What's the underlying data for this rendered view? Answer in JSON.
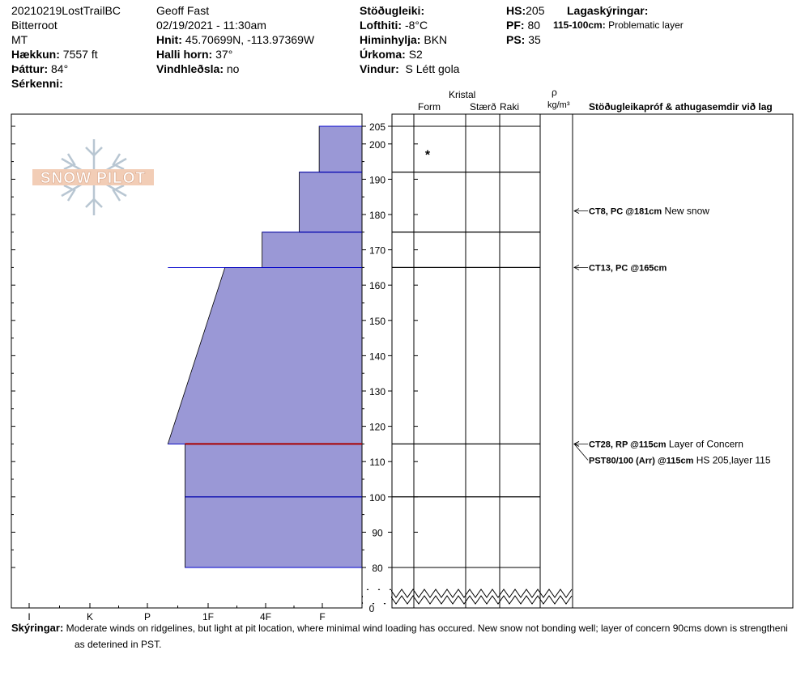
{
  "header": {
    "col1": {
      "pit_name": "20210219LostTrailBC",
      "range": "Bitterroot",
      "state": "MT",
      "elevation_label": "Hækkun:",
      "elevation": "7557 ft",
      "aspect_label": "Þáttur:",
      "aspect": "84°",
      "features_label": "Sérkenni:"
    },
    "col2": {
      "observer": "Geoff Fast",
      "datetime": "02/19/2021 - 11:30am",
      "coords_label": "Hnit:",
      "coords": "45.70699N, -113.97369W",
      "slope_label": "Halli horn:",
      "slope": "37°",
      "wind_loading_label": "Vindhleðsla:",
      "wind_loading": "no"
    },
    "col3": {
      "stability_label": "Stöðugleiki:",
      "air_temp_label": "Lofthiti:",
      "air_temp": "-8°C",
      "sky_label": "Himinhylja:",
      "sky": "BKN",
      "precip_label": "Úrkoma:",
      "precip": "S2",
      "wind_label": "Vindur:",
      "wind": "S Létt gola"
    },
    "col4": {
      "hs_label": "HS:",
      "hs": "205",
      "pf_label": "PF:",
      "pf": "80",
      "ps_label": "PS:",
      "ps": "35"
    },
    "layer_notes": {
      "title": "Lagaskýringar:",
      "range": "115-100cm:",
      "note": "Problematic layer"
    }
  },
  "logo": {
    "text": "SNOW PILOT"
  },
  "columns": {
    "crystal": "Kristal",
    "form": "Form",
    "size": "Stærð",
    "moisture": "Raki",
    "density_symbol": "ρ",
    "density_unit": "kg/m³",
    "tests": "Stöðugleikapróf & athugasemdir við lag"
  },
  "chart_data": {
    "type": "snow-profile",
    "y_axis": {
      "label": "",
      "ticks": [
        80,
        90,
        100,
        110,
        120,
        130,
        140,
        150,
        160,
        170,
        180,
        190,
        200,
        205
      ],
      "bottom_label": "0",
      "range": [
        78,
        206
      ]
    },
    "x_axis": {
      "label": "",
      "hardness_ticks": [
        "I",
        "K",
        "P",
        "1F",
        "4F",
        "F"
      ],
      "hardness_scale_note": ""
    },
    "layers": [
      {
        "top": 205,
        "bottom": 192,
        "hardness_top": 0.75,
        "hardness_bottom": 0.75
      },
      {
        "top": 192,
        "bottom": 175,
        "hardness_top": 1.1,
        "hardness_bottom": 1.1
      },
      {
        "top": 175,
        "bottom": 165,
        "hardness_top": 1.75,
        "hardness_bottom": 1.75
      },
      {
        "top": 165,
        "bottom": 115,
        "hardness_top": 2.4,
        "hardness_bottom": 3.4
      },
      {
        "top": 115,
        "bottom": 100,
        "hardness_top": 3.1,
        "hardness_bottom": 3.1
      },
      {
        "top": 100,
        "bottom": 80,
        "hardness_top": 3.1,
        "hardness_bottom": 3.1
      }
    ],
    "layer_of_concern_depth": 115,
    "form_symbols": [
      {
        "depth": 198,
        "symbol": "*"
      }
    ],
    "tests": [
      {
        "depth": 181,
        "result": "CT8, PC @181cm",
        "comment": "New snow"
      },
      {
        "depth": 165,
        "result": "CT13, PC @165cm",
        "comment": ""
      },
      {
        "depth": 115,
        "result": "CT28, RP @115cm",
        "comment": "Layer of Concern"
      },
      {
        "depth": 115,
        "result": "PST80/100 (Arr) @115cm",
        "comment": "HS 205,layer 115"
      }
    ]
  },
  "comments": {
    "label": "Skýringar:",
    "text": "Moderate winds on ridgelines, but light at pit location, where minimal wind loading has occured. New snow not bonding well; layer of concern 90cms down is strengtheni",
    "text2": "as deterined in PST."
  },
  "colors": {
    "layer_fill": "#9a98d6",
    "layer_line": "#0000cc",
    "concern_line": "#aa0000",
    "grid": "#000000"
  }
}
